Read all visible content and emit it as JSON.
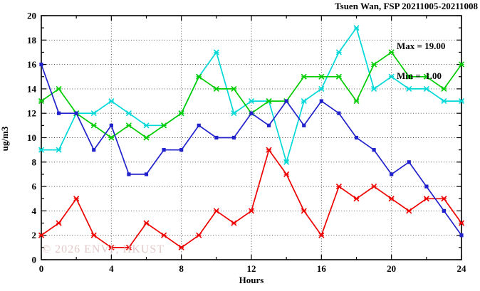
{
  "chart_data": {
    "type": "line",
    "title": "Tsuen Wan, FSP 20211005-20211008",
    "xlabel": "Hours",
    "ylabel": "ug/m3",
    "annotations": [
      "Max = 19.00",
      "Min =  1.00"
    ],
    "watermark": "© 2026 ENVF, HKUST",
    "xlim": [
      0,
      24
    ],
    "ylim": [
      0,
      20
    ],
    "x_major_ticks": [
      0,
      4,
      8,
      12,
      16,
      20,
      24
    ],
    "x_minor_ticks": [
      2,
      6,
      10,
      14,
      18,
      22
    ],
    "y_major_ticks": [
      0,
      2,
      4,
      6,
      8,
      10,
      12,
      14,
      16,
      18,
      20
    ],
    "y_minor_ticks": [
      1,
      3,
      5,
      7,
      9,
      11,
      13,
      15,
      17,
      19
    ],
    "grid": true,
    "legend_position": "top-right-inside",
    "x": [
      0,
      1,
      2,
      3,
      4,
      5,
      6,
      7,
      8,
      9,
      10,
      11,
      12,
      13,
      14,
      15,
      16,
      17,
      18,
      19,
      20,
      21,
      22,
      23,
      24
    ],
    "series": [
      {
        "name": "red",
        "color": "#ee0000",
        "marker": "cross",
        "values": [
          2,
          3,
          5,
          2,
          1,
          1,
          3,
          2,
          1,
          2,
          4,
          3,
          4,
          9,
          7,
          4,
          2,
          6,
          5,
          6,
          5,
          4,
          5,
          5,
          3
        ]
      },
      {
        "name": "cyan",
        "color": "#00d8d8",
        "marker": "cross",
        "values": [
          9,
          9,
          12,
          12,
          13,
          12,
          11,
          11,
          12,
          15,
          17,
          12,
          13,
          13,
          8,
          13,
          14,
          17,
          19,
          14,
          15,
          14,
          14,
          13,
          13
        ]
      },
      {
        "name": "green",
        "color": "#00cc00",
        "marker": "cross",
        "values": [
          13,
          14,
          12,
          11,
          10,
          11,
          10,
          11,
          12,
          15,
          14,
          14,
          12,
          13,
          13,
          15,
          15,
          15,
          13,
          16,
          17,
          15,
          15,
          14,
          16
        ]
      },
      {
        "name": "blue",
        "color": "#2222cc",
        "marker": "square",
        "values": [
          16,
          12,
          12,
          9,
          11,
          7,
          7,
          9,
          9,
          11,
          10,
          10,
          12,
          11,
          13,
          11,
          13,
          12,
          10,
          9,
          7,
          8,
          6,
          4,
          2
        ]
      }
    ]
  }
}
